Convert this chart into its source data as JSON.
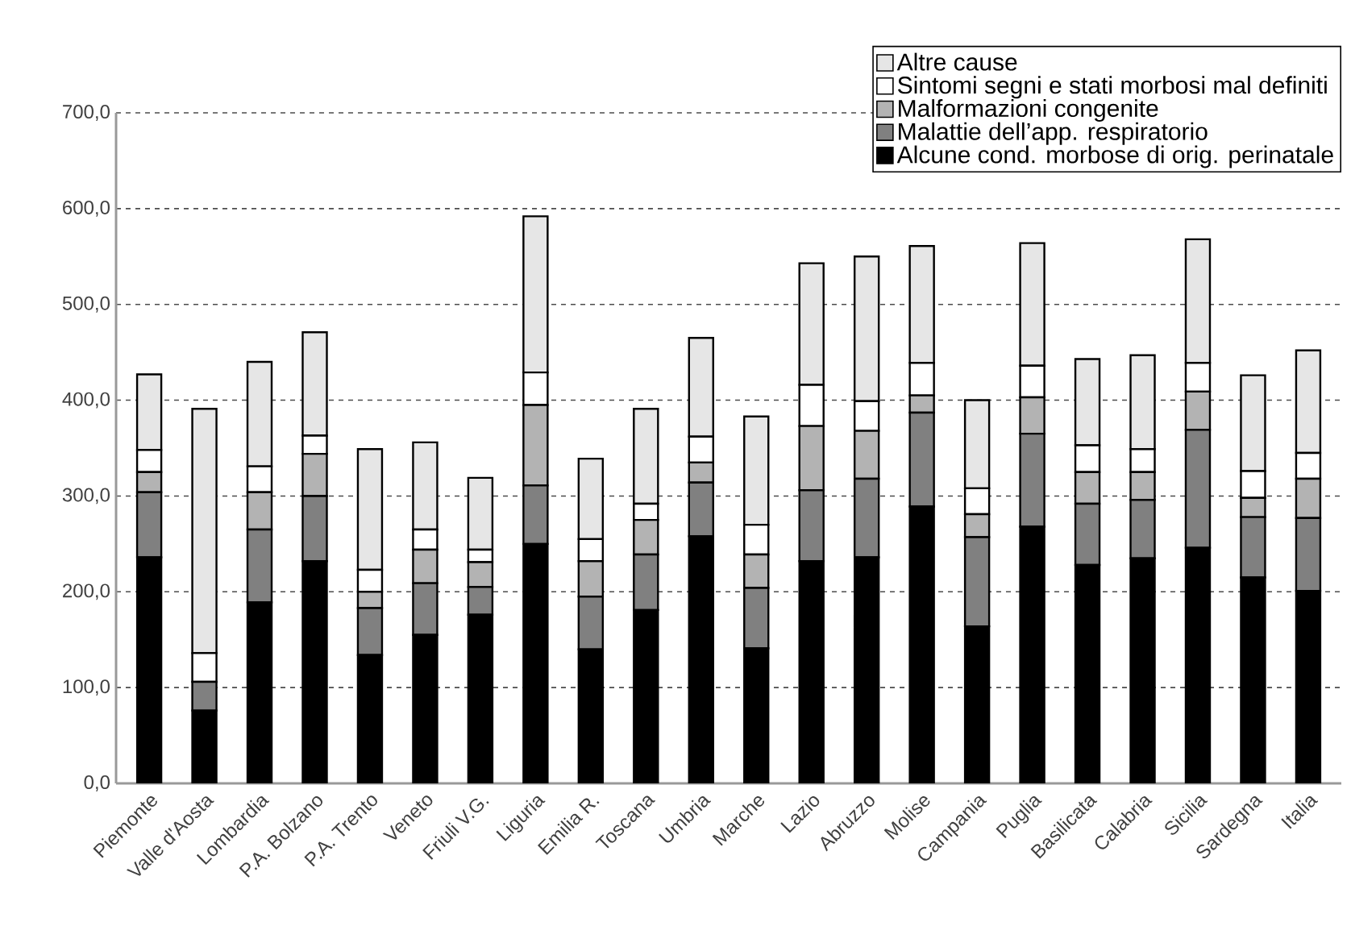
{
  "chart_data": {
    "type": "bar",
    "stacked": true,
    "categories": [
      "Piemonte",
      "Valle d'Aosta",
      "Lombardia",
      "P.A. Bolzano",
      "P.A. Trento",
      "Veneto",
      "Friuli V.G.",
      "Liguria",
      "Emilia R.",
      "Toscana",
      "Umbria",
      "Marche",
      "Lazio",
      "Abruzzo",
      "Molise",
      "Campania",
      "Puglia",
      "Basilicata",
      "Calabria",
      "Sicilia",
      "Sardegna",
      "Italia"
    ],
    "series": [
      {
        "name": "Alcune cond. morbose di orig. perinatale",
        "color": "#000000",
        "values": [
          236,
          76,
          189,
          232,
          134,
          155,
          176,
          250,
          140,
          181,
          258,
          141,
          232,
          236,
          289,
          164,
          268,
          228,
          235,
          246,
          215,
          201
        ]
      },
      {
        "name": "Malattie dell’app. respiratorio",
        "color": "#808080",
        "values": [
          68,
          30,
          76,
          68,
          49,
          54,
          29,
          61,
          55,
          58,
          56,
          63,
          74,
          82,
          98,
          93,
          97,
          64,
          61,
          123,
          63,
          76
        ]
      },
      {
        "name": "Malformazioni congenite",
        "color": "#b3b3b3",
        "values": [
          21,
          0,
          39,
          44,
          17,
          35,
          26,
          84,
          37,
          36,
          21,
          35,
          67,
          50,
          18,
          24,
          38,
          33,
          29,
          40,
          20,
          41
        ]
      },
      {
        "name": "Sintomi segni e stati morbosi mal definiti",
        "color": "#ffffff",
        "values": [
          23,
          30,
          27,
          19,
          23,
          21,
          13,
          34,
          23,
          17,
          27,
          31,
          43,
          31,
          34,
          27,
          33,
          28,
          24,
          30,
          28,
          27
        ]
      },
      {
        "name": "Altre cause",
        "color": "#e6e6e6",
        "values": [
          79,
          255,
          109,
          108,
          126,
          91,
          75,
          163,
          84,
          99,
          103,
          113,
          127,
          151,
          122,
          92,
          128,
          90,
          98,
          129,
          100,
          107
        ]
      }
    ],
    "ylim": [
      0,
      700
    ],
    "yticks": [
      {
        "value": 0,
        "label": "0,0"
      },
      {
        "value": 100,
        "label": "100,0"
      },
      {
        "value": 200,
        "label": "200,0"
      },
      {
        "value": 300,
        "label": "300,0"
      },
      {
        "value": 400,
        "label": "400,0"
      },
      {
        "value": 500,
        "label": "500,0"
      },
      {
        "value": 600,
        "label": "600,0"
      },
      {
        "value": 700,
        "label": "700,0"
      }
    ],
    "grid": "y",
    "legend": "top right"
  }
}
